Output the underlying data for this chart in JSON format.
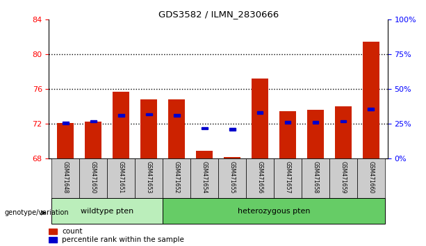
{
  "title": "GDS3582 / ILMN_2830666",
  "samples": [
    "GSM471648",
    "GSM471650",
    "GSM471651",
    "GSM471653",
    "GSM471652",
    "GSM471654",
    "GSM471655",
    "GSM471656",
    "GSM471657",
    "GSM471658",
    "GSM471659",
    "GSM471660"
  ],
  "bar_values": [
    72.1,
    72.3,
    75.7,
    74.8,
    74.8,
    68.9,
    68.2,
    77.2,
    73.5,
    73.6,
    74.0,
    81.5
  ],
  "percentile_values": [
    72.1,
    72.3,
    73.0,
    73.1,
    73.0,
    71.5,
    71.4,
    73.3,
    72.2,
    72.2,
    72.3,
    73.7
  ],
  "ylim_left": [
    68,
    84
  ],
  "yleft_ticks": [
    68,
    72,
    76,
    80,
    84
  ],
  "yright_labels": [
    "0%",
    "25%",
    "50%",
    "75%",
    "100%"
  ],
  "bar_color": "#cc2200",
  "percentile_color": "#0000cc",
  "dotted_lines": [
    72,
    76,
    80
  ],
  "n_wildtype": 4,
  "wildtype_label": "wildtype pten",
  "heterozygous_label": "heterozygous pten",
  "genotype_label": "genotype/variation",
  "legend_count_label": "count",
  "legend_percentile_label": "percentile rank within the sample",
  "wildtype_color": "#bbeebb",
  "heterozygous_color": "#66cc66",
  "bar_width": 0.6,
  "base_value": 68
}
